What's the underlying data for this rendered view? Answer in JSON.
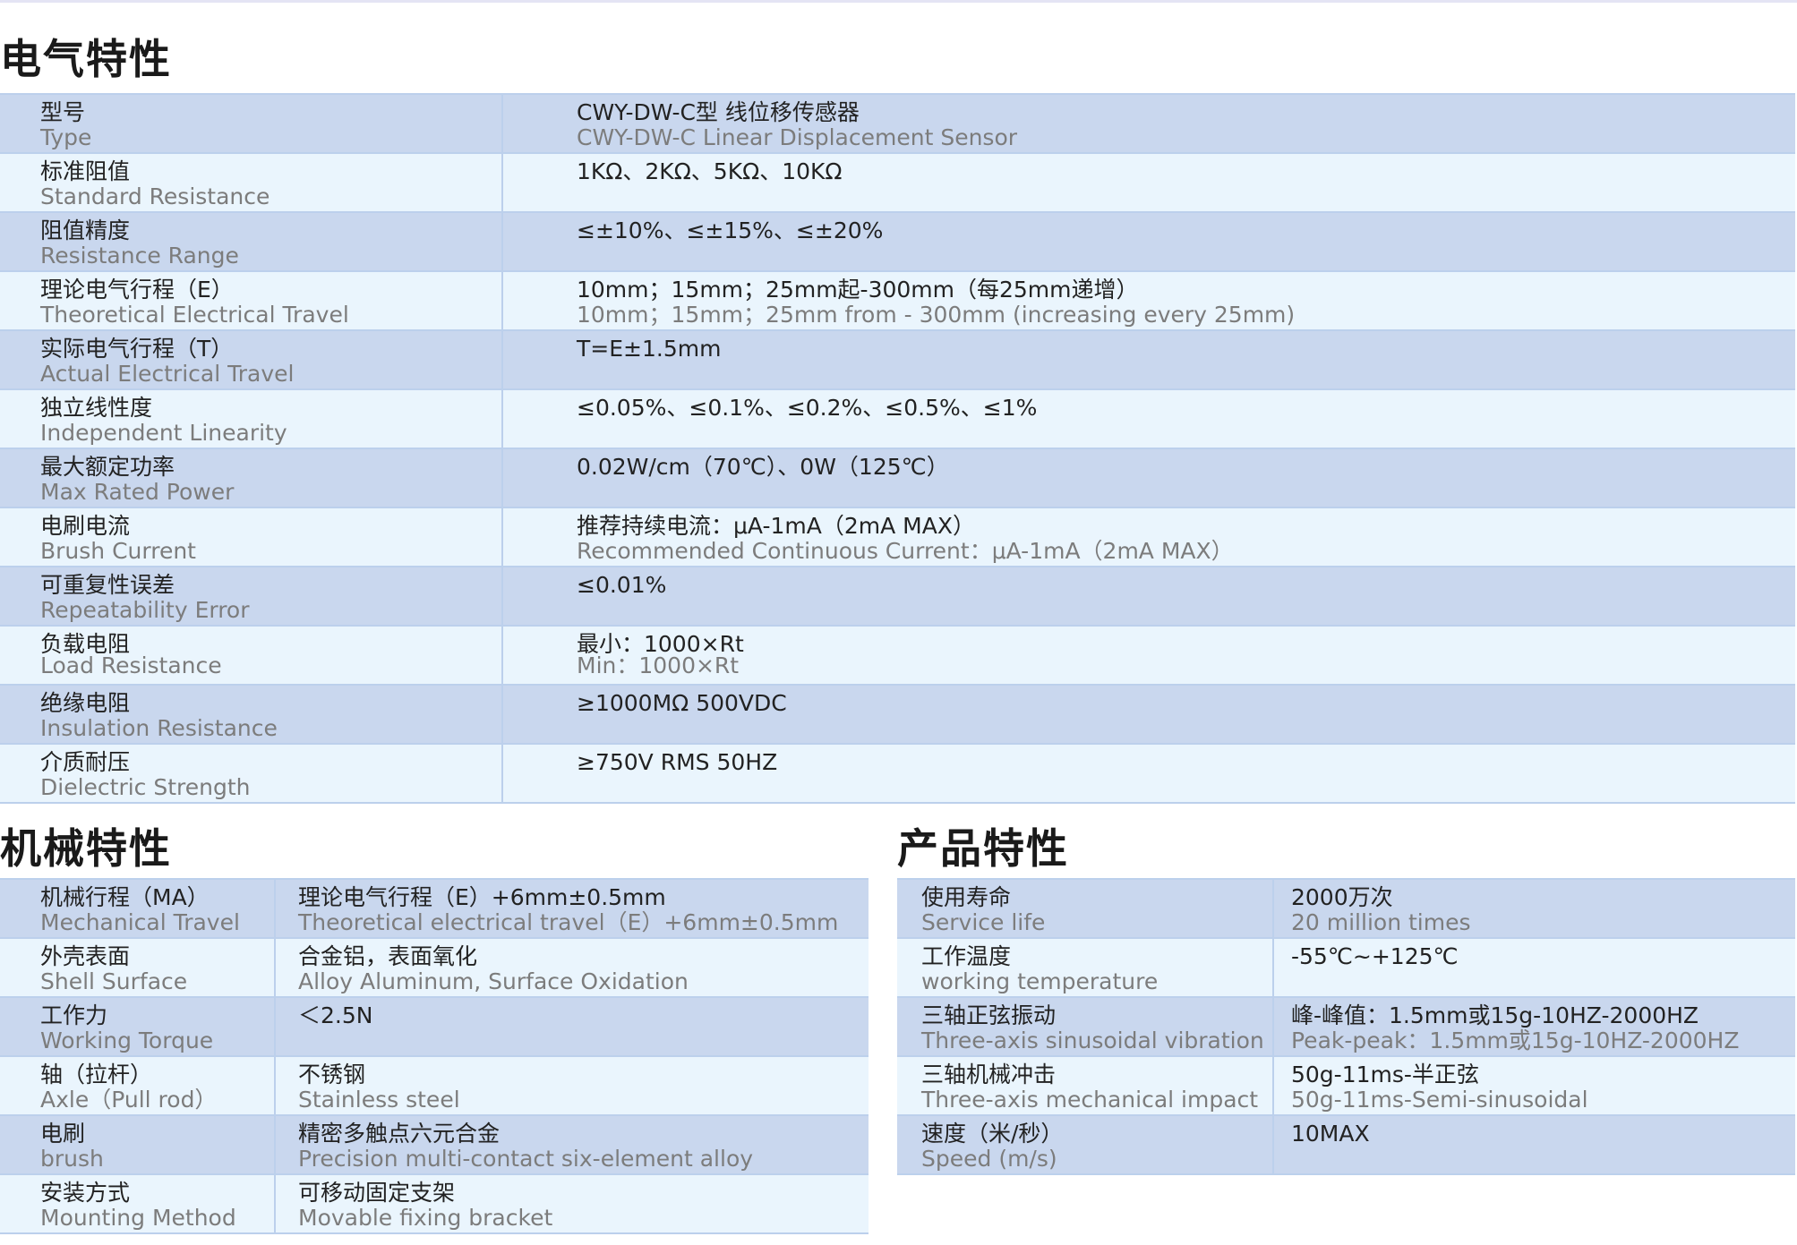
{
  "electrical": {
    "title": "电气特性",
    "rows": [
      {
        "label_zh": "型号",
        "label_en": "Type",
        "value_zh": "CWY-DW-C型 线位移传感器",
        "value_en": "CWY-DW-C Linear Displacement Sensor"
      },
      {
        "label_zh": "标准阻值",
        "label_en": "Standard Resistance",
        "value_zh": "1KΩ、2KΩ、5KΩ、10KΩ",
        "value_en": ""
      },
      {
        "label_zh": "阻值精度",
        "label_en": "Resistance Range",
        "value_zh": "≤±10%、≤±15%、≤±20%",
        "value_en": ""
      },
      {
        "label_zh": "理论电气行程（E）",
        "label_en": "Theoretical Electrical Travel",
        "value_zh": "10mm；15mm；25mm起-300mm（每25mm递增）",
        "value_en": "10mm；15mm；25mm from - 300mm (increasing every 25mm)"
      },
      {
        "label_zh": "实际电气行程（T）",
        "label_en": "Actual Electrical Travel",
        "value_zh": "T=E±1.5mm",
        "value_en": ""
      },
      {
        "label_zh": "独立线性度",
        "label_en": "Independent Linearity",
        "value_zh": "≤0.05%、≤0.1%、≤0.2%、≤0.5%、≤1%",
        "value_en": ""
      },
      {
        "label_zh": "最大额定功率",
        "label_en": "Max Rated Power",
        "value_zh": "0.02W/cm（70℃）、0W（125℃）",
        "value_en": ""
      },
      {
        "label_zh": "电刷电流",
        "label_en": "Brush Current",
        "value_zh": "推荐持续电流：μA-1mA（2mA MAX）",
        "value_en": "Recommended Continuous Current：μA-1mA（2mA MAX）"
      },
      {
        "label_zh": "可重复性误差",
        "label_en": "Repeatability Error",
        "value_zh": "≤0.01%",
        "value_en": ""
      },
      {
        "label_zh": "负载电阻",
        "label_en": "Load Resistance",
        "value_zh": "最小：1000×Rt",
        "value_en": "Min：1000×Rt"
      },
      {
        "label_zh": "绝缘电阻",
        "label_en": "Insulation Resistance",
        "value_zh": "≥1000MΩ 500VDC",
        "value_en": ""
      },
      {
        "label_zh": "介质耐压",
        "label_en": "Dielectric Strength",
        "value_zh": "≥750V RMS  50HZ",
        "value_en": ""
      }
    ]
  },
  "mechanical": {
    "title": "机械特性",
    "rows": [
      {
        "label_zh": "机械行程（MA）",
        "label_en": "Mechanical Travel",
        "value_zh": "理论电气行程（E）+6mm±0.5mm",
        "value_en": "Theoretical electrical travel（E）+6mm±0.5mm"
      },
      {
        "label_zh": "外壳表面",
        "label_en": "Shell Surface",
        "value_zh": "合金铝，表面氧化",
        "value_en": "Alloy Aluminum, Surface Oxidation"
      },
      {
        "label_zh": "工作力",
        "label_en": "Working Torque",
        "value_zh": "＜2.5N",
        "value_en": ""
      },
      {
        "label_zh": "轴（拉杆）",
        "label_en": "Axle（Pull rod）",
        "value_zh": "不锈钢",
        "value_en": "Stainless steel"
      },
      {
        "label_zh": "电刷",
        "label_en": "brush",
        "value_zh": "精密多触点六元合金",
        "value_en": "Precision multi-contact six-element alloy"
      },
      {
        "label_zh": "安装方式",
        "label_en": "Mounting Method",
        "value_zh": "可移动固定支架",
        "value_en": "Movable fixing bracket"
      }
    ]
  },
  "product": {
    "title": "产品特性",
    "rows": [
      {
        "label_zh": "使用寿命",
        "label_en": "Service life",
        "value_zh": "2000万次",
        "value_en": "20 million times"
      },
      {
        "label_zh": "工作温度",
        "label_en": "working temperature",
        "value_zh": "-55℃~+125℃",
        "value_en": ""
      },
      {
        "label_zh": "三轴正弦振动",
        "label_en": "Three-axis sinusoidal vibration",
        "value_zh": "峰-峰值：1.5mm或15g-10HZ-2000HZ",
        "value_en": "Peak-peak：1.5mm或15g-10HZ-2000HZ"
      },
      {
        "label_zh": "三轴机械冲击",
        "label_en": "Three-axis mechanical impact",
        "value_zh": "50g-11ms-半正弦",
        "value_en": "50g-11ms-Semi-sinusoidal"
      },
      {
        "label_zh": "速度（米/秒）",
        "label_en": "Speed (m/s)",
        "value_zh": "10MAX",
        "value_en": ""
      }
    ]
  },
  "colors": {
    "row_dark": "#c9d7ee",
    "row_light": "#eaf5fd",
    "border": "#bcd0ec"
  }
}
